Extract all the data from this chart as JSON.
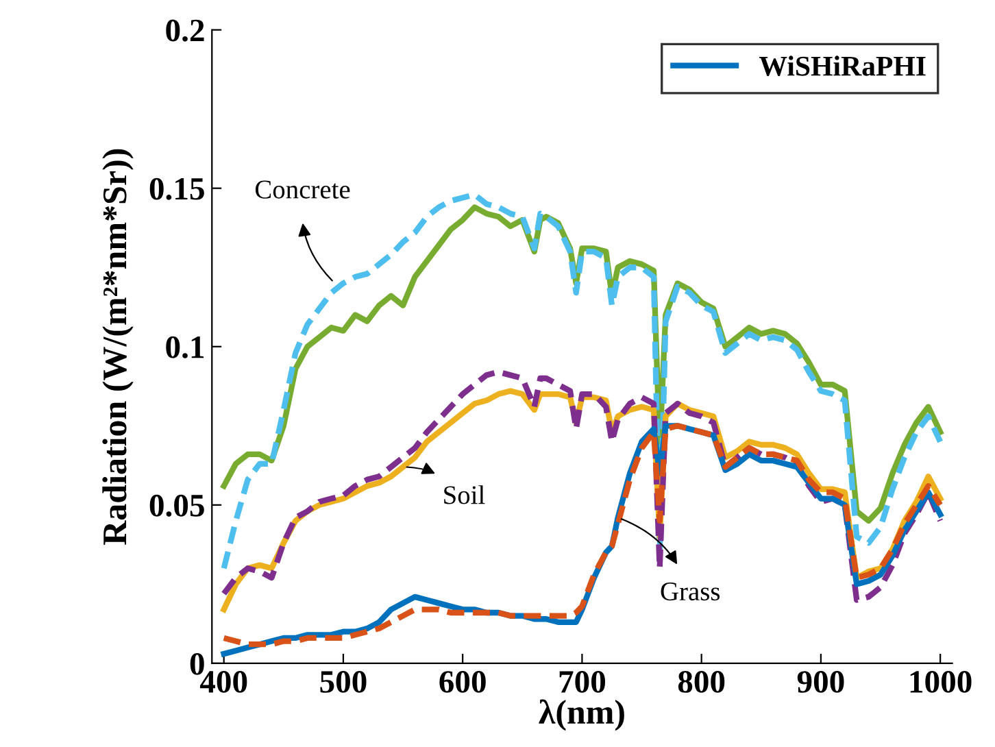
{
  "chart_data": {
    "type": "line",
    "xlabel": "λ(nm)",
    "ylabel": "Radiation (W/(m²*nm*Sr))",
    "x": [
      400,
      410,
      420,
      430,
      440,
      450,
      460,
      470,
      480,
      490,
      500,
      510,
      520,
      530,
      540,
      550,
      560,
      570,
      580,
      590,
      600,
      610,
      620,
      630,
      640,
      650,
      660,
      665,
      670,
      680,
      690,
      695,
      700,
      710,
      720,
      725,
      730,
      740,
      750,
      760,
      765,
      770,
      780,
      790,
      800,
      810,
      820,
      830,
      840,
      850,
      860,
      870,
      880,
      890,
      900,
      910,
      920,
      930,
      940,
      950,
      960,
      970,
      980,
      990,
      1000
    ],
    "series": [
      {
        "color": "#77ac30",
        "line_style": "solid",
        "values": [
          0.056,
          0.063,
          0.066,
          0.066,
          0.064,
          0.075,
          0.093,
          0.1,
          0.103,
          0.106,
          0.105,
          0.11,
          0.108,
          0.113,
          0.116,
          0.113,
          0.122,
          0.127,
          0.132,
          0.137,
          0.14,
          0.144,
          0.142,
          0.141,
          0.138,
          0.14,
          0.13,
          0.14,
          0.141,
          0.139,
          0.131,
          0.12,
          0.131,
          0.131,
          0.13,
          0.116,
          0.125,
          0.127,
          0.126,
          0.124,
          0.068,
          0.11,
          0.12,
          0.118,
          0.114,
          0.112,
          0.1,
          0.103,
          0.106,
          0.104,
          0.105,
          0.104,
          0.101,
          0.095,
          0.088,
          0.088,
          0.086,
          0.048,
          0.045,
          0.049,
          0.06,
          0.069,
          0.076,
          0.081,
          0.073
        ]
      },
      {
        "color": "#4dbeee",
        "line_style": "dashed",
        "values": [
          0.03,
          0.045,
          0.058,
          0.063,
          0.063,
          0.08,
          0.098,
          0.107,
          0.112,
          0.117,
          0.12,
          0.122,
          0.123,
          0.126,
          0.129,
          0.133,
          0.136,
          0.141,
          0.144,
          0.146,
          0.147,
          0.148,
          0.145,
          0.144,
          0.142,
          0.141,
          0.131,
          0.142,
          0.141,
          0.138,
          0.13,
          0.117,
          0.13,
          0.13,
          0.128,
          0.113,
          0.122,
          0.125,
          0.125,
          0.122,
          0.035,
          0.108,
          0.119,
          0.117,
          0.113,
          0.111,
          0.098,
          0.101,
          0.104,
          0.102,
          0.103,
          0.102,
          0.099,
          0.092,
          0.086,
          0.085,
          0.083,
          0.04,
          0.038,
          0.043,
          0.055,
          0.065,
          0.073,
          0.078,
          0.07
        ]
      },
      {
        "color": "#edb120",
        "line_style": "solid",
        "values": [
          0.017,
          0.025,
          0.03,
          0.031,
          0.03,
          0.038,
          0.045,
          0.048,
          0.05,
          0.051,
          0.052,
          0.054,
          0.056,
          0.057,
          0.059,
          0.062,
          0.065,
          0.07,
          0.073,
          0.076,
          0.079,
          0.082,
          0.083,
          0.085,
          0.086,
          0.085,
          0.08,
          0.085,
          0.085,
          0.085,
          0.084,
          0.076,
          0.084,
          0.084,
          0.083,
          0.073,
          0.078,
          0.08,
          0.081,
          0.08,
          0.04,
          0.078,
          0.082,
          0.08,
          0.079,
          0.078,
          0.065,
          0.067,
          0.07,
          0.069,
          0.069,
          0.068,
          0.066,
          0.06,
          0.055,
          0.055,
          0.054,
          0.027,
          0.029,
          0.03,
          0.036,
          0.045,
          0.051,
          0.059,
          0.052
        ]
      },
      {
        "color": "#7e2f8e",
        "line_style": "dashed",
        "values": [
          0.022,
          0.027,
          0.03,
          0.029,
          0.027,
          0.038,
          0.046,
          0.048,
          0.051,
          0.052,
          0.053,
          0.056,
          0.058,
          0.059,
          0.062,
          0.065,
          0.068,
          0.073,
          0.077,
          0.081,
          0.085,
          0.088,
          0.091,
          0.092,
          0.091,
          0.09,
          0.081,
          0.09,
          0.09,
          0.088,
          0.086,
          0.074,
          0.085,
          0.085,
          0.081,
          0.07,
          0.077,
          0.082,
          0.084,
          0.082,
          0.03,
          0.079,
          0.082,
          0.079,
          0.078,
          0.076,
          0.062,
          0.065,
          0.068,
          0.066,
          0.066,
          0.065,
          0.063,
          0.056,
          0.051,
          0.052,
          0.05,
          0.02,
          0.021,
          0.024,
          0.031,
          0.041,
          0.047,
          0.054,
          0.045
        ]
      },
      {
        "name": "WiSHiRaPHI",
        "color": "#0072bd",
        "line_style": "solid",
        "values": [
          0.003,
          0.004,
          0.005,
          0.006,
          0.007,
          0.008,
          0.008,
          0.009,
          0.009,
          0.009,
          0.01,
          0.01,
          0.011,
          0.013,
          0.017,
          0.019,
          0.021,
          0.02,
          0.019,
          0.018,
          0.017,
          0.017,
          0.016,
          0.016,
          0.015,
          0.015,
          0.014,
          0.014,
          0.014,
          0.013,
          0.013,
          0.013,
          0.017,
          0.027,
          0.035,
          0.037,
          0.046,
          0.06,
          0.07,
          0.074,
          0.06,
          0.075,
          0.075,
          0.074,
          0.073,
          0.072,
          0.061,
          0.063,
          0.066,
          0.064,
          0.064,
          0.063,
          0.062,
          0.057,
          0.052,
          0.052,
          0.05,
          0.025,
          0.026,
          0.028,
          0.034,
          0.042,
          0.048,
          0.054,
          0.047
        ]
      },
      {
        "color": "#d95319",
        "line_style": "dashed",
        "values": [
          0.008,
          0.007,
          0.006,
          0.006,
          0.006,
          0.007,
          0.007,
          0.008,
          0.008,
          0.008,
          0.008,
          0.009,
          0.01,
          0.011,
          0.013,
          0.015,
          0.017,
          0.017,
          0.017,
          0.016,
          0.016,
          0.016,
          0.016,
          0.016,
          0.015,
          0.015,
          0.015,
          0.015,
          0.015,
          0.015,
          0.015,
          0.016,
          0.018,
          0.028,
          0.035,
          0.037,
          0.044,
          0.058,
          0.068,
          0.073,
          0.045,
          0.074,
          0.075,
          0.074,
          0.073,
          0.072,
          0.062,
          0.065,
          0.068,
          0.066,
          0.066,
          0.065,
          0.064,
          0.058,
          0.054,
          0.054,
          0.052,
          0.027,
          0.028,
          0.03,
          0.036,
          0.044,
          0.05,
          0.056,
          0.05
        ]
      }
    ],
    "xlim": [
      390,
      1010
    ],
    "ylim": [
      0,
      0.2
    ],
    "xticks": [
      400,
      500,
      600,
      700,
      800,
      900,
      1000
    ],
    "yticks": [
      0,
      0.05,
      {
        "value": 0.1,
        "label": "0.1"
      },
      0.15,
      {
        "value": 0.2,
        "label": "0.2"
      }
    ],
    "annotations": [
      {
        "text": "Concrete",
        "x": 493,
        "y": 0.12
      },
      {
        "text": "Soil",
        "x": 550,
        "y": 0.062
      },
      {
        "text": "Grass",
        "x": 730,
        "y": 0.046
      }
    ],
    "legend": "top right",
    "grid": false,
    "marker": "none"
  }
}
